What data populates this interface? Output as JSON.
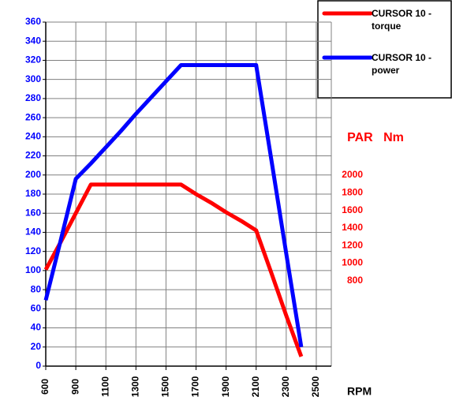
{
  "chart_data": {
    "type": "line",
    "categories": [
      "600",
      null,
      "900",
      null,
      "1100",
      null,
      "1300",
      null,
      "1500",
      null,
      "1700",
      null,
      "1900",
      null,
      "2100",
      null,
      "2300",
      null,
      "2500"
    ],
    "series": [
      {
        "name": "CURSOR 10 - torque",
        "color": "#ff0000",
        "values": [
          101,
          130,
          160,
          190,
          190,
          190,
          190,
          190,
          190,
          190,
          180,
          171,
          161,
          152,
          142,
          98,
          53,
          10,
          null
        ]
      },
      {
        "name": "CURSOR 10 - power",
        "color": "#0000ff",
        "values": [
          69,
          132,
          196,
          212,
          229,
          246,
          264,
          281,
          298,
          315,
          315,
          315,
          315,
          315,
          315,
          217,
          118,
          20,
          null
        ]
      }
    ],
    "ylim": [
      0,
      360
    ],
    "yticks": [
      0,
      20,
      40,
      60,
      80,
      100,
      120,
      140,
      160,
      180,
      200,
      220,
      240,
      260,
      280,
      300,
      320,
      340,
      360
    ],
    "y2lim": [
      -170,
      3740
    ],
    "y2ticks": [
      800,
      1000,
      1200,
      1400,
      1600,
      1800,
      2000
    ],
    "y2_label": "PAR   Nm",
    "x_label": "RPM",
    "grid": true
  }
}
